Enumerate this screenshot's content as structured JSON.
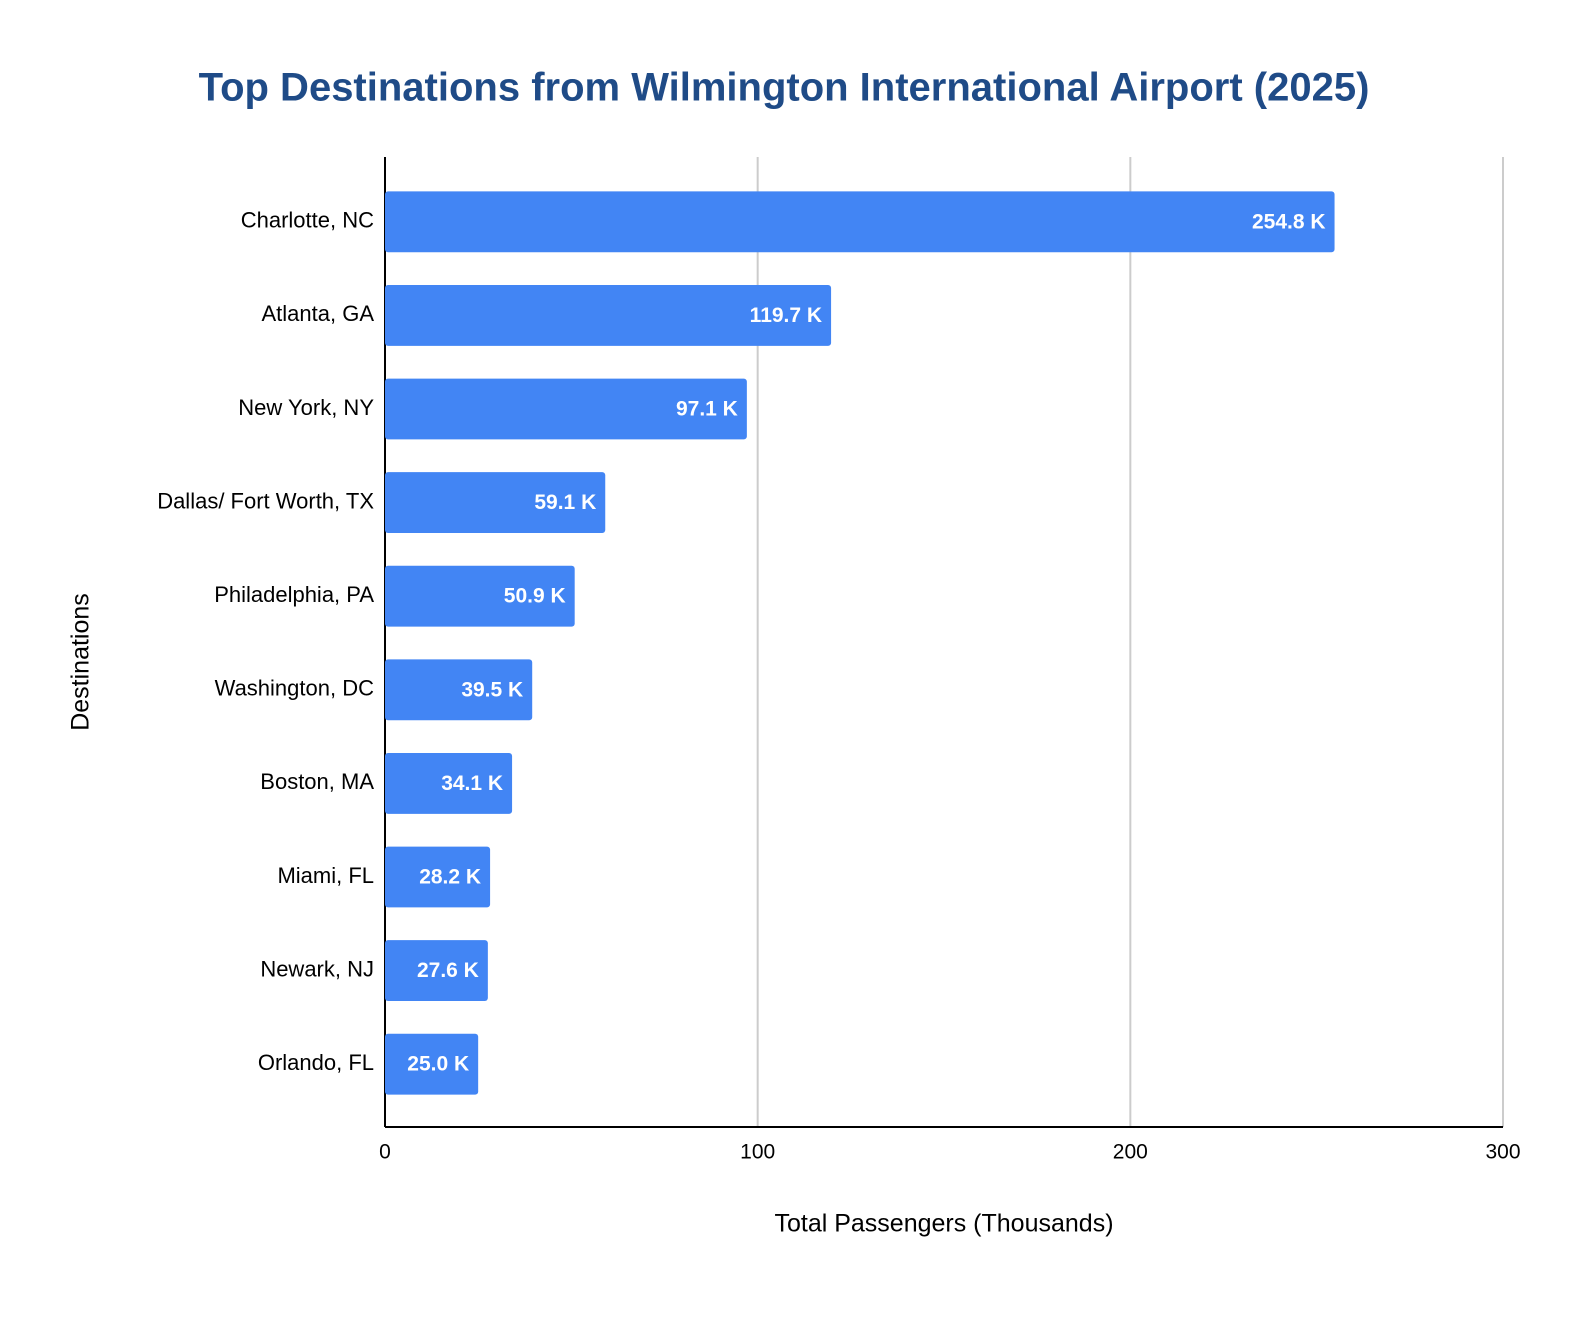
{
  "chart_data": {
    "type": "bar",
    "orientation": "horizontal",
    "title": "Top Destinations from Wilmington International Airport (2025)",
    "x_label": "Total Passengers (Thousands)",
    "y_label": "Destinations",
    "categories": [
      "Charlotte, NC",
      "Atlanta, GA",
      "New York, NY",
      "Dallas/ Fort Worth, TX",
      "Philadelphia, PA",
      "Washington, DC",
      "Boston, MA",
      "Miami, FL",
      "Newark, NJ",
      "Orlando, FL"
    ],
    "values": [
      254.8,
      119.7,
      97.1,
      59.1,
      50.9,
      39.5,
      34.1,
      28.2,
      27.6,
      25.0
    ],
    "value_labels": [
      "254.8 K",
      "119.7 K",
      "97.1 K",
      "59.1 K",
      "50.9 K",
      "39.5 K",
      "34.1 K",
      "28.2 K",
      "27.6 K",
      "25.0 K"
    ],
    "color": "#4285f4",
    "xlim": [
      0,
      300
    ],
    "xticks": [
      0,
      100,
      200,
      300
    ],
    "grid": true
  }
}
